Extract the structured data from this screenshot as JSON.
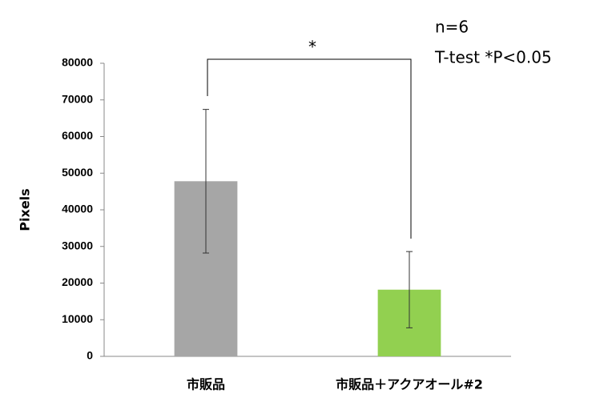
{
  "chart_data": {
    "type": "bar",
    "y_label": "Pixels",
    "categories": [
      "市販品",
      "市販品＋アクアオール#2"
    ],
    "values": [
      47800,
      18200
    ],
    "errors": [
      19600,
      10400
    ],
    "colors": [
      "#a6a6a6",
      "#92d050"
    ],
    "ylim": [
      0,
      80000
    ],
    "yticks": [
      0,
      10000,
      20000,
      30000,
      40000,
      50000,
      60000,
      70000,
      80000
    ],
    "annotations": [
      "*",
      "n=6",
      "T-test *P<0.05"
    ]
  }
}
